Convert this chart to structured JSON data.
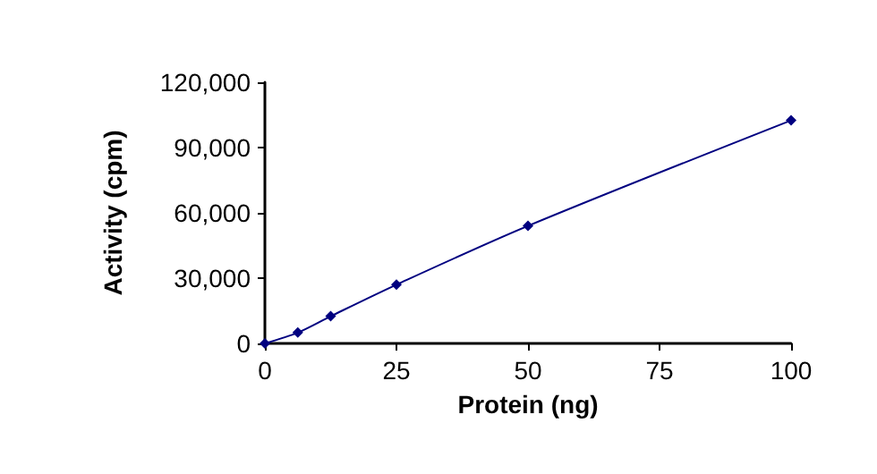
{
  "chart_data": {
    "type": "line",
    "xlabel": "Protein (ng)",
    "ylabel": "Activity (cpm)",
    "x": [
      0,
      6.25,
      12.5,
      25,
      50,
      100
    ],
    "series": [
      {
        "color": "#000080",
        "values": [
          0,
          5000,
          12500,
          27000,
          54000,
          102500
        ]
      }
    ],
    "xlim": [
      0,
      100
    ],
    "xticks": [
      0,
      25,
      50,
      75,
      100
    ],
    "ylim": [
      0,
      120000
    ],
    "yticks": [
      0,
      {
        "value": 30000,
        "label": "30,000"
      },
      {
        "value": 60000,
        "label": "60,000"
      },
      {
        "value": 90000,
        "label": "90,000"
      },
      {
        "value": 120000,
        "label": "120,000"
      }
    ],
    "grid": false,
    "marker": "diamond",
    "line_style": "solid"
  }
}
